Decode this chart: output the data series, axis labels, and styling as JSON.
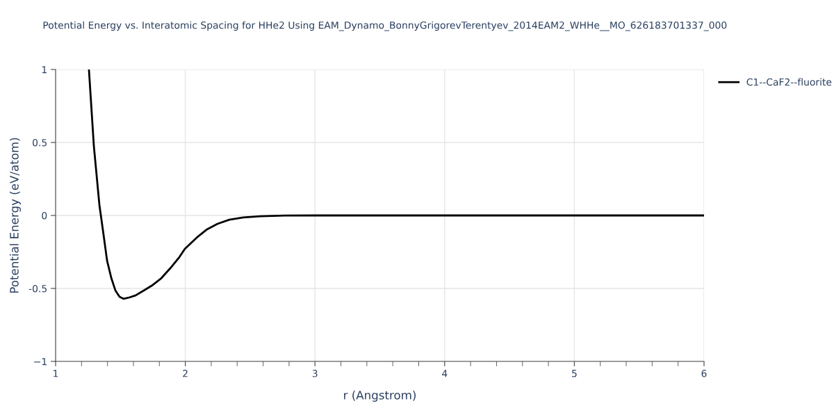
{
  "chart_data": {
    "type": "line",
    "title": "Potential Energy vs. Interatomic Spacing for HHe2 Using EAM_Dynamo_BonnyGrigorevTerentyev_2014EAM2_WHHe__MO_626183701337_000",
    "xlabel": "r (Angstrom)",
    "ylabel": "Potential Energy (eV/atom)",
    "series": [
      {
        "name": "C1--CaF2--fluorite",
        "color": "#000000",
        "x": [
          1.257,
          1.295,
          1.338,
          1.364,
          1.397,
          1.43,
          1.461,
          1.493,
          1.525,
          1.568,
          1.616,
          1.68,
          1.75,
          1.815,
          1.884,
          1.954,
          1.997,
          2.088,
          2.168,
          2.249,
          2.34,
          2.447,
          2.58,
          2.77,
          3.0,
          4.0,
          5.0,
          6.0
        ],
        "values": [
          1.0,
          0.476,
          0.07,
          -0.095,
          -0.31,
          -0.43,
          -0.514,
          -0.557,
          -0.571,
          -0.562,
          -0.548,
          -0.514,
          -0.476,
          -0.43,
          -0.362,
          -0.286,
          -0.229,
          -0.152,
          -0.095,
          -0.057,
          -0.029,
          -0.014,
          -0.005,
          -0.001,
          0,
          0,
          0,
          0
        ]
      }
    ],
    "xlim": [
      1,
      6
    ],
    "ylim": [
      -1,
      1
    ],
    "xticks": [
      1,
      {
        "value": 1.2,
        "label": null
      },
      {
        "value": 1.4,
        "label": null
      },
      {
        "value": 1.6,
        "label": null
      },
      {
        "value": 1.8,
        "label": null
      },
      2,
      {
        "value": 2.2,
        "label": null
      },
      {
        "value": 2.4,
        "label": null
      },
      {
        "value": 2.6,
        "label": null
      },
      {
        "value": 2.8,
        "label": null
      },
      3,
      {
        "value": 3.2,
        "label": null
      },
      {
        "value": 3.4,
        "label": null
      },
      {
        "value": 3.6,
        "label": null
      },
      {
        "value": 3.8,
        "label": null
      },
      4,
      {
        "value": 4.2,
        "label": null
      },
      {
        "value": 4.4,
        "label": null
      },
      {
        "value": 4.6,
        "label": null
      },
      {
        "value": 4.8,
        "label": null
      },
      5,
      {
        "value": 5.2,
        "label": null
      },
      {
        "value": 5.4,
        "label": null
      },
      {
        "value": 5.6,
        "label": null
      },
      {
        "value": 5.8,
        "label": null
      },
      6
    ],
    "yticks": [
      {
        "value": -1,
        "label": "−1"
      },
      -0.5,
      0,
      0.5,
      1
    ],
    "grid": true,
    "legend": "top right",
    "marker": "none",
    "line_style": "solid"
  }
}
